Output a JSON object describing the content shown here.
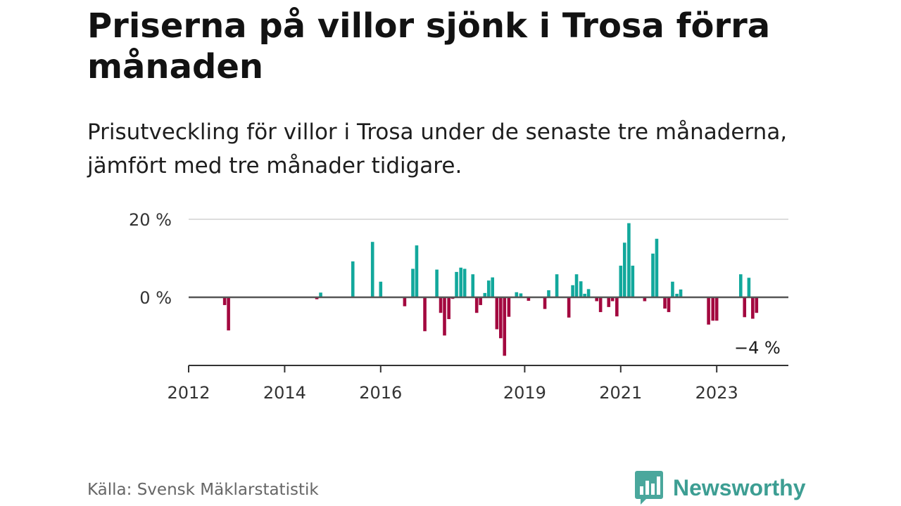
{
  "title": "Priserna på villor sjönk i Trosa förra månaden",
  "subtitle": "Prisutveckling för villor i Trosa under de senaste tre månaderna, jämfört med tre månader tidigare.",
  "source": "Källa: Svensk Mäklarstatistik",
  "brand": {
    "name": "Newsworthy",
    "icon": "newsworthy-logo-icon"
  },
  "colors": {
    "positive": "#12a89c",
    "negative": "#a3083f",
    "grid": "#dddddd",
    "axis": "#333333"
  },
  "chart_data": {
    "type": "bar",
    "y_unit": "%",
    "ylim": [
      -17,
      20
    ],
    "yticks": [
      {
        "value": 20,
        "label": "20 %"
      },
      {
        "value": 0,
        "label": "0 %"
      }
    ],
    "xlim": [
      2012.0,
      2024.7
    ],
    "xticks": [
      {
        "value": 2012,
        "label": "2012"
      },
      {
        "value": 2014,
        "label": "2014"
      },
      {
        "value": 2016,
        "label": "2016"
      },
      {
        "value": 2019,
        "label": "2019"
      },
      {
        "value": 2021,
        "label": "2021"
      },
      {
        "value": 2023,
        "label": "2023"
      }
    ],
    "grid": true,
    "annotation": {
      "label": "−4 %",
      "value": -4
    },
    "points": [
      {
        "x": 2012.75,
        "y": -2
      },
      {
        "x": 2012.83,
        "y": -8.5
      },
      {
        "x": 2014.67,
        "y": -0.5
      },
      {
        "x": 2014.75,
        "y": 1.2
      },
      {
        "x": 2015.42,
        "y": 9.2
      },
      {
        "x": 2015.83,
        "y": 14.2
      },
      {
        "x": 2016.0,
        "y": 4
      },
      {
        "x": 2016.5,
        "y": -2.3
      },
      {
        "x": 2016.67,
        "y": 7.3
      },
      {
        "x": 2016.75,
        "y": 13.3
      },
      {
        "x": 2016.92,
        "y": -8.7
      },
      {
        "x": 2017.17,
        "y": 7.1
      },
      {
        "x": 2017.25,
        "y": -4
      },
      {
        "x": 2017.33,
        "y": -9.8
      },
      {
        "x": 2017.42,
        "y": -5.6
      },
      {
        "x": 2017.5,
        "y": -0.4
      },
      {
        "x": 2017.58,
        "y": 6.5
      },
      {
        "x": 2017.67,
        "y": 7.6
      },
      {
        "x": 2017.75,
        "y": 7.3
      },
      {
        "x": 2017.92,
        "y": 5.9
      },
      {
        "x": 2018.0,
        "y": -4
      },
      {
        "x": 2018.08,
        "y": -2
      },
      {
        "x": 2018.17,
        "y": 1.1
      },
      {
        "x": 2018.25,
        "y": 4.3
      },
      {
        "x": 2018.33,
        "y": 5.1
      },
      {
        "x": 2018.42,
        "y": -8.2
      },
      {
        "x": 2018.5,
        "y": -10.5
      },
      {
        "x": 2018.58,
        "y": -15
      },
      {
        "x": 2018.67,
        "y": -5
      },
      {
        "x": 2018.83,
        "y": 1.3
      },
      {
        "x": 2018.92,
        "y": 1
      },
      {
        "x": 2019.08,
        "y": -0.9
      },
      {
        "x": 2019.42,
        "y": -3
      },
      {
        "x": 2019.5,
        "y": 1.8
      },
      {
        "x": 2019.67,
        "y": 5.9
      },
      {
        "x": 2019.92,
        "y": -5.2
      },
      {
        "x": 2020.0,
        "y": 3.1
      },
      {
        "x": 2020.08,
        "y": 5.9
      },
      {
        "x": 2020.17,
        "y": 4.1
      },
      {
        "x": 2020.25,
        "y": 0.9
      },
      {
        "x": 2020.33,
        "y": 2.1
      },
      {
        "x": 2020.5,
        "y": -1
      },
      {
        "x": 2020.58,
        "y": -3.8
      },
      {
        "x": 2020.75,
        "y": -2.5
      },
      {
        "x": 2020.83,
        "y": -1
      },
      {
        "x": 2020.92,
        "y": -4.9
      },
      {
        "x": 2021.0,
        "y": 8.1
      },
      {
        "x": 2021.08,
        "y": 14
      },
      {
        "x": 2021.17,
        "y": 19
      },
      {
        "x": 2021.25,
        "y": 8.1
      },
      {
        "x": 2021.5,
        "y": -1
      },
      {
        "x": 2021.67,
        "y": 11.2
      },
      {
        "x": 2021.75,
        "y": 15
      },
      {
        "x": 2021.92,
        "y": -2.9
      },
      {
        "x": 2022.0,
        "y": -3.8
      },
      {
        "x": 2022.08,
        "y": 4
      },
      {
        "x": 2022.17,
        "y": 0.9
      },
      {
        "x": 2022.25,
        "y": 2
      },
      {
        "x": 2022.83,
        "y": -7
      },
      {
        "x": 2022.92,
        "y": -6
      },
      {
        "x": 2023.0,
        "y": -6
      },
      {
        "x": 2023.5,
        "y": 5.9
      },
      {
        "x": 2023.58,
        "y": -5.1
      },
      {
        "x": 2023.67,
        "y": 5
      },
      {
        "x": 2023.75,
        "y": -5.5
      },
      {
        "x": 2023.83,
        "y": -4
      }
    ]
  }
}
